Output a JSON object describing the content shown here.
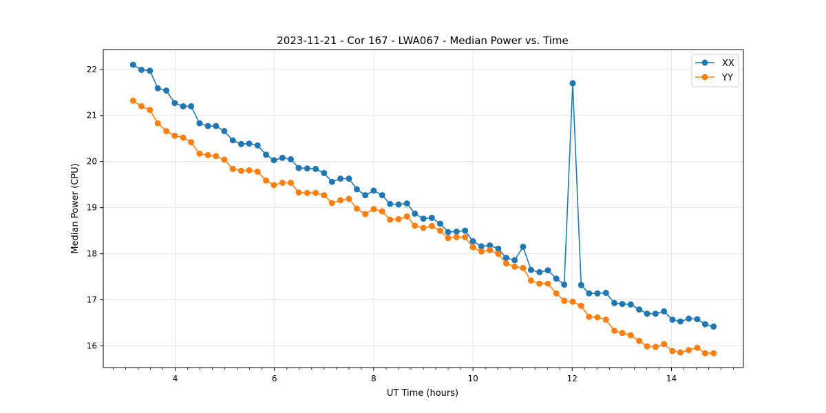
{
  "chart_data": {
    "type": "line",
    "title": "2023-11-21 - Cor 167 - LWA067 - Median Power vs. Time",
    "xlabel": "UT Time (hours)",
    "ylabel": "Median Power (CPU)",
    "xlim": [
      2.55,
      15.45
    ],
    "ylim": [
      15.53,
      22.43
    ],
    "x_ticks": [
      4,
      6,
      8,
      10,
      12,
      14
    ],
    "x_tick_labels": [
      "4",
      "6",
      "8",
      "10",
      "12",
      "14"
    ],
    "y_ticks": [
      16,
      17,
      18,
      19,
      20,
      21,
      22
    ],
    "y_tick_labels": [
      "16",
      "17",
      "18",
      "19",
      "20",
      "21",
      "22"
    ],
    "grid": true,
    "legend_position": "top-right",
    "x": [
      3.15,
      3.32,
      3.49,
      3.65,
      3.82,
      3.99,
      4.16,
      4.32,
      4.49,
      4.66,
      4.82,
      4.99,
      5.16,
      5.33,
      5.49,
      5.66,
      5.83,
      5.99,
      6.16,
      6.33,
      6.49,
      6.66,
      6.83,
      7.0,
      7.16,
      7.33,
      7.5,
      7.66,
      7.83,
      8.0,
      8.17,
      8.33,
      8.5,
      8.67,
      8.83,
      9.0,
      9.17,
      9.34,
      9.5,
      9.67,
      9.84,
      10.0,
      10.17,
      10.34,
      10.51,
      10.67,
      10.84,
      11.01,
      11.17,
      11.34,
      11.51,
      11.68,
      11.84,
      12.01,
      12.18,
      12.34,
      12.51,
      12.68,
      12.85,
      13.01,
      13.18,
      13.35,
      13.51,
      13.68,
      13.85,
      14.02,
      14.18,
      14.35,
      14.52,
      14.68,
      14.85
    ],
    "series": [
      {
        "name": "XX",
        "color": "#1f77b4",
        "values": [
          22.1,
          21.99,
          21.97,
          21.59,
          21.54,
          21.27,
          21.2,
          21.2,
          20.83,
          20.77,
          20.77,
          20.66,
          20.46,
          20.38,
          20.39,
          20.35,
          20.15,
          20.03,
          20.08,
          20.05,
          19.86,
          19.85,
          19.84,
          19.75,
          19.56,
          19.63,
          19.63,
          19.4,
          19.27,
          19.37,
          19.27,
          19.08,
          19.07,
          19.09,
          18.87,
          18.76,
          18.78,
          18.65,
          18.47,
          18.48,
          18.5,
          18.27,
          18.16,
          18.18,
          18.11,
          17.91,
          17.86,
          18.15,
          17.65,
          17.6,
          17.64,
          17.46,
          17.33,
          21.7,
          17.32,
          17.14,
          17.14,
          17.15,
          16.93,
          16.91,
          16.9,
          16.79,
          16.7,
          16.7,
          16.75,
          16.57,
          16.53,
          16.59,
          16.58,
          16.47,
          16.42
        ]
      },
      {
        "name": "YY",
        "color": "#ff7f0e",
        "values": [
          21.32,
          21.2,
          21.12,
          20.83,
          20.66,
          20.56,
          20.52,
          20.42,
          20.17,
          20.14,
          20.12,
          20.04,
          19.84,
          19.8,
          19.81,
          19.78,
          19.59,
          19.49,
          19.54,
          19.54,
          19.33,
          19.32,
          19.32,
          19.27,
          19.1,
          19.16,
          19.19,
          18.98,
          18.86,
          18.97,
          18.92,
          18.74,
          18.75,
          18.81,
          18.61,
          18.56,
          18.6,
          18.5,
          18.34,
          18.36,
          18.36,
          18.14,
          18.05,
          18.08,
          18.0,
          17.79,
          17.72,
          17.69,
          17.42,
          17.35,
          17.35,
          17.14,
          16.98,
          16.96,
          16.87,
          16.63,
          16.62,
          16.57,
          16.33,
          16.28,
          16.23,
          16.11,
          15.99,
          15.98,
          16.04,
          15.89,
          15.86,
          15.91,
          15.96,
          15.84,
          15.84
        ]
      }
    ]
  }
}
